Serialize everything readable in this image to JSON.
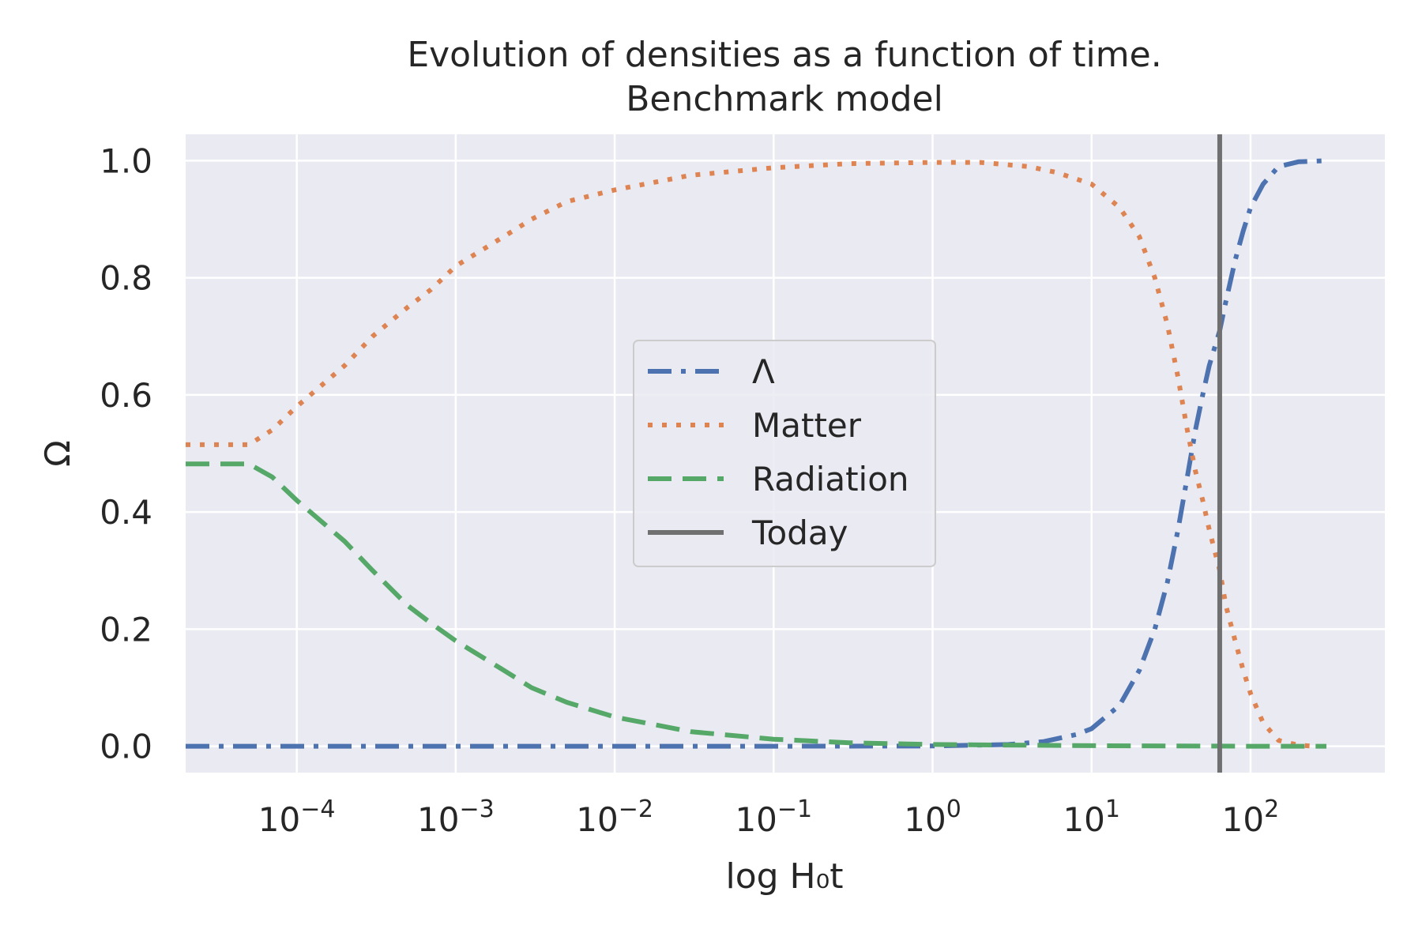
{
  "chart_data": {
    "type": "line",
    "title": "Evolution of densities as a function of time.",
    "subtitle": "Benchmark model",
    "xlabel": "log H₀t",
    "ylabel": "Ω",
    "xscale": "log",
    "xlim": [
      2e-05,
      700
    ],
    "ylim": [
      -0.045,
      1.045
    ],
    "grid": true,
    "background_color": "#eaeaf2",
    "legend_position": "center",
    "x_ticks": [
      {
        "value": 0.0001,
        "base": "10",
        "exp": "−4"
      },
      {
        "value": 0.001,
        "base": "10",
        "exp": "−3"
      },
      {
        "value": 0.01,
        "base": "10",
        "exp": "−2"
      },
      {
        "value": 0.1,
        "base": "10",
        "exp": "−1"
      },
      {
        "value": 1,
        "base": "10",
        "exp": "0"
      },
      {
        "value": 10,
        "base": "10",
        "exp": "1"
      },
      {
        "value": 100,
        "base": "10",
        "exp": "2"
      }
    ],
    "y_ticks": [
      {
        "value": 0.0,
        "label": "0.0"
      },
      {
        "value": 0.2,
        "label": "0.2"
      },
      {
        "value": 0.4,
        "label": "0.4"
      },
      {
        "value": 0.6,
        "label": "0.6"
      },
      {
        "value": 0.8,
        "label": "0.8"
      },
      {
        "value": 1.0,
        "label": "1.0"
      }
    ],
    "today": {
      "name": "Today",
      "x": 64,
      "color": "#707070"
    },
    "series": [
      {
        "name": "Λ",
        "color": "#4c72b0",
        "dash": "dashdot",
        "points": [
          [
            2e-05,
            0.0
          ],
          [
            0.001,
            0.0
          ],
          [
            0.1,
            0.0
          ],
          [
            1,
            0.0005
          ],
          [
            3,
            0.003
          ],
          [
            5,
            0.008
          ],
          [
            8,
            0.02
          ],
          [
            10,
            0.03
          ],
          [
            15,
            0.07
          ],
          [
            20,
            0.13
          ],
          [
            25,
            0.2
          ],
          [
            30,
            0.28
          ],
          [
            35,
            0.37
          ],
          [
            40,
            0.46
          ],
          [
            45,
            0.54
          ],
          [
            50,
            0.6
          ],
          [
            55,
            0.65
          ],
          [
            64,
            0.71
          ],
          [
            70,
            0.76
          ],
          [
            80,
            0.83
          ],
          [
            90,
            0.88
          ],
          [
            100,
            0.92
          ],
          [
            120,
            0.96
          ],
          [
            150,
            0.99
          ],
          [
            200,
            0.998
          ],
          [
            300,
            1.0
          ]
        ]
      },
      {
        "name": "Matter",
        "color": "#dd8452",
        "dash": "dotted",
        "points": [
          [
            2e-05,
            0.515
          ],
          [
            5e-05,
            0.515
          ],
          [
            7e-05,
            0.54
          ],
          [
            0.0001,
            0.58
          ],
          [
            0.0002,
            0.65
          ],
          [
            0.0003,
            0.7
          ],
          [
            0.0005,
            0.75
          ],
          [
            0.0007,
            0.78
          ],
          [
            0.001,
            0.82
          ],
          [
            0.002,
            0.87
          ],
          [
            0.003,
            0.9
          ],
          [
            0.005,
            0.93
          ],
          [
            0.01,
            0.95
          ],
          [
            0.03,
            0.975
          ],
          [
            0.1,
            0.988
          ],
          [
            0.3,
            0.995
          ],
          [
            1,
            0.997
          ],
          [
            2,
            0.997
          ],
          [
            4,
            0.99
          ],
          [
            6,
            0.98
          ],
          [
            10,
            0.96
          ],
          [
            15,
            0.92
          ],
          [
            20,
            0.87
          ],
          [
            25,
            0.8
          ],
          [
            30,
            0.72
          ],
          [
            35,
            0.63
          ],
          [
            40,
            0.54
          ],
          [
            45,
            0.47
          ],
          [
            50,
            0.42
          ],
          [
            55,
            0.37
          ],
          [
            64,
            0.3
          ],
          [
            70,
            0.24
          ],
          [
            80,
            0.18
          ],
          [
            90,
            0.13
          ],
          [
            100,
            0.09
          ],
          [
            120,
            0.04
          ],
          [
            150,
            0.01
          ],
          [
            200,
            0.002
          ],
          [
            250,
            0.0
          ]
        ]
      },
      {
        "name": "Radiation",
        "color": "#55a868",
        "dash": "dashed",
        "points": [
          [
            2e-05,
            0.482
          ],
          [
            5e-05,
            0.482
          ],
          [
            7e-05,
            0.46
          ],
          [
            0.0001,
            0.42
          ],
          [
            0.0002,
            0.35
          ],
          [
            0.0003,
            0.3
          ],
          [
            0.0005,
            0.24
          ],
          [
            0.0007,
            0.21
          ],
          [
            0.001,
            0.18
          ],
          [
            0.002,
            0.13
          ],
          [
            0.003,
            0.1
          ],
          [
            0.005,
            0.075
          ],
          [
            0.01,
            0.05
          ],
          [
            0.03,
            0.025
          ],
          [
            0.1,
            0.012
          ],
          [
            0.3,
            0.006
          ],
          [
            1,
            0.003
          ],
          [
            10,
            0.001
          ],
          [
            100,
            0.0
          ],
          [
            300,
            0.0
          ]
        ]
      }
    ]
  }
}
